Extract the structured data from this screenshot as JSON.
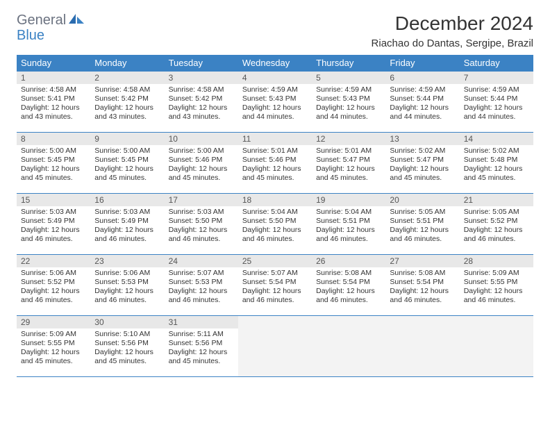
{
  "logo": {
    "part1": "General",
    "part2": "Blue"
  },
  "title": "December 2024",
  "location": "Riachao do Dantas, Sergipe, Brazil",
  "colors": {
    "header_bg": "#3b82c4",
    "header_text": "#ffffff",
    "daynum_bg": "#e8e8e8",
    "border": "#3b82c4",
    "logo_gray": "#6b7280",
    "logo_blue": "#3b82c4"
  },
  "day_headers": [
    "Sunday",
    "Monday",
    "Tuesday",
    "Wednesday",
    "Thursday",
    "Friday",
    "Saturday"
  ],
  "weeks": [
    [
      {
        "n": "1",
        "sr": "4:58 AM",
        "ss": "5:41 PM",
        "dl": "12 hours and 43 minutes."
      },
      {
        "n": "2",
        "sr": "4:58 AM",
        "ss": "5:42 PM",
        "dl": "12 hours and 43 minutes."
      },
      {
        "n": "3",
        "sr": "4:58 AM",
        "ss": "5:42 PM",
        "dl": "12 hours and 43 minutes."
      },
      {
        "n": "4",
        "sr": "4:59 AM",
        "ss": "5:43 PM",
        "dl": "12 hours and 44 minutes."
      },
      {
        "n": "5",
        "sr": "4:59 AM",
        "ss": "5:43 PM",
        "dl": "12 hours and 44 minutes."
      },
      {
        "n": "6",
        "sr": "4:59 AM",
        "ss": "5:44 PM",
        "dl": "12 hours and 44 minutes."
      },
      {
        "n": "7",
        "sr": "4:59 AM",
        "ss": "5:44 PM",
        "dl": "12 hours and 44 minutes."
      }
    ],
    [
      {
        "n": "8",
        "sr": "5:00 AM",
        "ss": "5:45 PM",
        "dl": "12 hours and 45 minutes."
      },
      {
        "n": "9",
        "sr": "5:00 AM",
        "ss": "5:45 PM",
        "dl": "12 hours and 45 minutes."
      },
      {
        "n": "10",
        "sr": "5:00 AM",
        "ss": "5:46 PM",
        "dl": "12 hours and 45 minutes."
      },
      {
        "n": "11",
        "sr": "5:01 AM",
        "ss": "5:46 PM",
        "dl": "12 hours and 45 minutes."
      },
      {
        "n": "12",
        "sr": "5:01 AM",
        "ss": "5:47 PM",
        "dl": "12 hours and 45 minutes."
      },
      {
        "n": "13",
        "sr": "5:02 AM",
        "ss": "5:47 PM",
        "dl": "12 hours and 45 minutes."
      },
      {
        "n": "14",
        "sr": "5:02 AM",
        "ss": "5:48 PM",
        "dl": "12 hours and 45 minutes."
      }
    ],
    [
      {
        "n": "15",
        "sr": "5:03 AM",
        "ss": "5:49 PM",
        "dl": "12 hours and 46 minutes."
      },
      {
        "n": "16",
        "sr": "5:03 AM",
        "ss": "5:49 PM",
        "dl": "12 hours and 46 minutes."
      },
      {
        "n": "17",
        "sr": "5:03 AM",
        "ss": "5:50 PM",
        "dl": "12 hours and 46 minutes."
      },
      {
        "n": "18",
        "sr": "5:04 AM",
        "ss": "5:50 PM",
        "dl": "12 hours and 46 minutes."
      },
      {
        "n": "19",
        "sr": "5:04 AM",
        "ss": "5:51 PM",
        "dl": "12 hours and 46 minutes."
      },
      {
        "n": "20",
        "sr": "5:05 AM",
        "ss": "5:51 PM",
        "dl": "12 hours and 46 minutes."
      },
      {
        "n": "21",
        "sr": "5:05 AM",
        "ss": "5:52 PM",
        "dl": "12 hours and 46 minutes."
      }
    ],
    [
      {
        "n": "22",
        "sr": "5:06 AM",
        "ss": "5:52 PM",
        "dl": "12 hours and 46 minutes."
      },
      {
        "n": "23",
        "sr": "5:06 AM",
        "ss": "5:53 PM",
        "dl": "12 hours and 46 minutes."
      },
      {
        "n": "24",
        "sr": "5:07 AM",
        "ss": "5:53 PM",
        "dl": "12 hours and 46 minutes."
      },
      {
        "n": "25",
        "sr": "5:07 AM",
        "ss": "5:54 PM",
        "dl": "12 hours and 46 minutes."
      },
      {
        "n": "26",
        "sr": "5:08 AM",
        "ss": "5:54 PM",
        "dl": "12 hours and 46 minutes."
      },
      {
        "n": "27",
        "sr": "5:08 AM",
        "ss": "5:54 PM",
        "dl": "12 hours and 46 minutes."
      },
      {
        "n": "28",
        "sr": "5:09 AM",
        "ss": "5:55 PM",
        "dl": "12 hours and 46 minutes."
      }
    ],
    [
      {
        "n": "29",
        "sr": "5:09 AM",
        "ss": "5:55 PM",
        "dl": "12 hours and 45 minutes."
      },
      {
        "n": "30",
        "sr": "5:10 AM",
        "ss": "5:56 PM",
        "dl": "12 hours and 45 minutes."
      },
      {
        "n": "31",
        "sr": "5:11 AM",
        "ss": "5:56 PM",
        "dl": "12 hours and 45 minutes."
      },
      null,
      null,
      null,
      null
    ]
  ],
  "labels": {
    "sunrise": "Sunrise:",
    "sunset": "Sunset:",
    "daylight": "Daylight:"
  }
}
